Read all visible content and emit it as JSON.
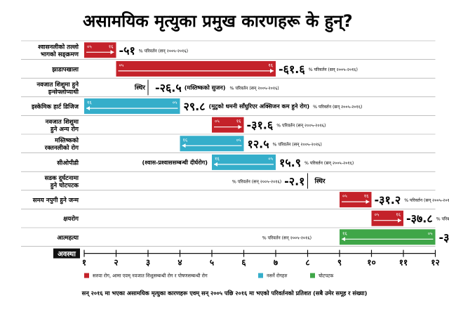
{
  "chart_data": {
    "type": "bar",
    "title": "असामयिक मृत्युका प्रमुख कारणहरू के हुन्?",
    "footnote": "सन् २०१६ मा भएका असामयिक मृत्युका कारणहरू एवम् सन् २००५ पछि २०१६ मा भएको परिवर्तनको प्रतिशत (सबै उमेर समूह र संख्या)",
    "axis_label": "अवस्था",
    "ticks": [
      "१",
      "२",
      "३",
      "४",
      "५",
      "६",
      "७",
      "८",
      "९",
      "१०",
      "११",
      "१२"
    ],
    "xlim": [
      1,
      12
    ],
    "change_label": "% परिवर्तन (सन् २००५-२०१६)",
    "start_tag": "०५",
    "end_tag": "१६",
    "colors": {
      "communicable": "#c4222a",
      "ncd": "#35aeca",
      "injury": "#3fa648",
      "arrow": "#ffffff"
    },
    "legend": [
      {
        "name": "सरुवा रोग, आमा एवम् नवजात शिशुसम्बन्धी रोग र पोषणसम्बन्धी रोग",
        "color_key": "communicable"
      },
      {
        "name": "नसर्ने रोगहरु",
        "color_key": "ncd"
      },
      {
        "name": "चोटपटक",
        "color_key": "injury"
      }
    ],
    "rows": [
      {
        "cause": [
          "श्वासनलीको तल्लो",
          "भागको सङ्क्रमण"
        ],
        "rank_2005": 1,
        "rank_2016": 2,
        "change": "-५१",
        "category": "communicable",
        "note": ""
      },
      {
        "cause": [
          "झाडापखाला"
        ],
        "rank_2005": 2,
        "rank_2016": 7,
        "change": "-६१.६",
        "category": "communicable",
        "note": ""
      },
      {
        "cause": [
          "नवजात शिशुमा हुने",
          "इन्सेफ्लोप्याथी"
        ],
        "rank_2005": 3,
        "rank_2016": 3,
        "change": "-२६.५",
        "category": "communicable",
        "note": "(मस्तिष्कको सुजन)",
        "status": "स्थिर"
      },
      {
        "cause": [
          "इस्केमिक हार्ट डिजिज"
        ],
        "rank_2005": 4,
        "rank_2016": 1,
        "change": "२९.८",
        "category": "ncd",
        "note": "(मुटुको धमनी साँघुरिएर अक्सिजन कम हुने रोग)"
      },
      {
        "cause": [
          "नवजात शिशुमा",
          "हुने अन्य रोग"
        ],
        "rank_2005": 5,
        "rank_2016": 6,
        "change": "-३१.६",
        "category": "communicable",
        "note": ""
      },
      {
        "cause": [
          "मस्तिष्कको",
          "रक्तनलीको रोग"
        ],
        "rank_2005": 6,
        "rank_2016": 4,
        "change": "१२.५",
        "category": "ncd",
        "note": ""
      },
      {
        "cause": [
          "सीओपीडी"
        ],
        "rank_2005": 7,
        "rank_2016": 5,
        "change": "१५.९",
        "category": "ncd",
        "note": "(श्वास-प्रश्वाससम्बन्धी दीर्घरोग)"
      },
      {
        "cause": [
          "सडक दुर्घटनामा",
          "हुने चोटपटक"
        ],
        "rank_2005": 8,
        "rank_2016": 8,
        "change": "-२.१",
        "category": "injury",
        "note": "",
        "status": "स्थिर"
      },
      {
        "cause": [
          "समय नपुगी हुने जन्म"
        ],
        "rank_2005": 9,
        "rank_2016": 10,
        "change": "-३१.२",
        "category": "communicable",
        "note": ""
      },
      {
        "cause": [
          "क्षयरोग"
        ],
        "rank_2005": 10,
        "rank_2016": 11,
        "change": "-३७.८",
        "category": "communicable",
        "note": ""
      },
      {
        "cause": [
          "आत्महत्या"
        ],
        "rank_2005": 12,
        "rank_2016": 9,
        "change": "-३",
        "category": "injury",
        "note": ""
      }
    ]
  }
}
